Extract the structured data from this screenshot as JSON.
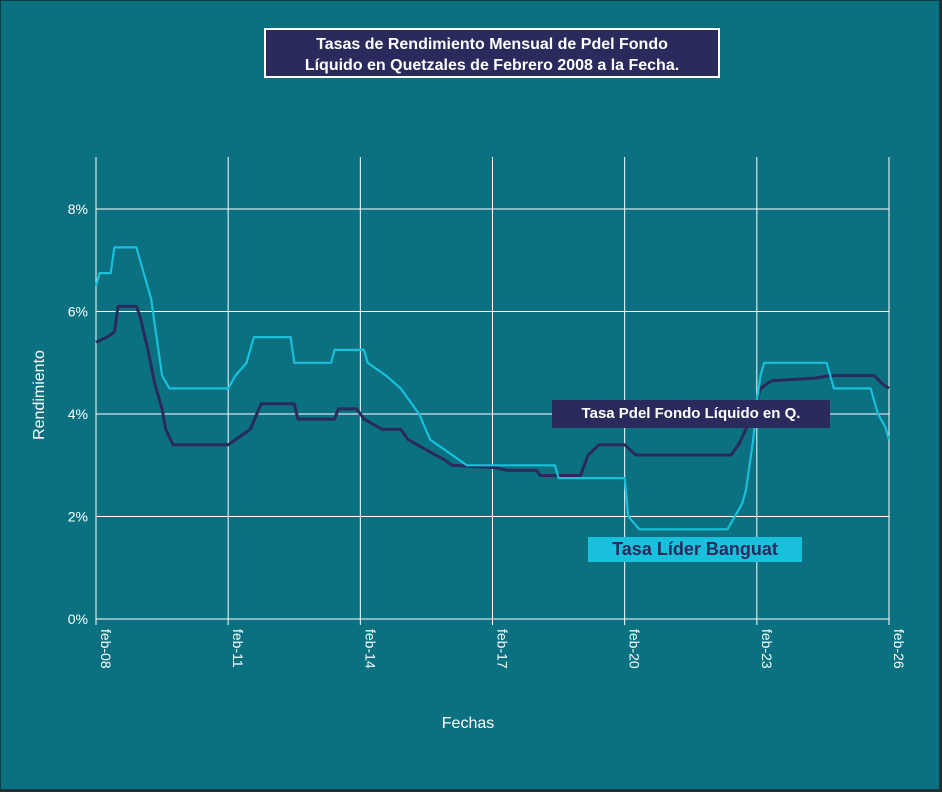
{
  "chart_data": {
    "type": "line",
    "title_lines": [
      "Tasas de Rendimiento Mensual de Pdel Fondo",
      "Líquido en Quetzales de Febrero 2008 a la Fecha."
    ],
    "xlabel": "Fechas",
    "ylabel": "Rendimiento",
    "x_ticks": [
      "feb-08",
      "feb-11",
      "feb-14",
      "feb-17",
      "feb-20",
      "feb-23",
      "feb-26"
    ],
    "y_ticks": [
      "0%",
      "2%",
      "4%",
      "6%",
      "8%"
    ],
    "xlim": [
      "2008-02",
      "2026-02"
    ],
    "ylim": [
      0,
      9
    ],
    "grid": true,
    "series": [
      {
        "name": "Tasa Pdel Fondo Líquido en Q.",
        "color": "#2a2a5c",
        "points": [
          [
            "2008-02",
            5.4
          ],
          [
            "2008-05",
            5.5
          ],
          [
            "2008-07",
            5.6
          ],
          [
            "2008-08",
            6.1
          ],
          [
            "2009-01",
            6.1
          ],
          [
            "2009-02",
            5.9
          ],
          [
            "2009-04",
            5.3
          ],
          [
            "2009-06",
            4.6
          ],
          [
            "2009-08",
            4.1
          ],
          [
            "2009-09",
            3.7
          ],
          [
            "2009-11",
            3.4
          ],
          [
            "2010-06",
            3.4
          ],
          [
            "2011-02",
            3.4
          ],
          [
            "2011-04",
            3.5
          ],
          [
            "2011-08",
            3.7
          ],
          [
            "2011-11",
            4.2
          ],
          [
            "2012-08",
            4.2
          ],
          [
            "2012-09",
            3.9
          ],
          [
            "2013-07",
            3.9
          ],
          [
            "2013-08",
            4.1
          ],
          [
            "2014-01",
            4.1
          ],
          [
            "2014-03",
            3.9
          ],
          [
            "2014-08",
            3.7
          ],
          [
            "2015-01",
            3.7
          ],
          [
            "2015-03",
            3.5
          ],
          [
            "2015-08",
            3.3
          ],
          [
            "2016-01",
            3.1
          ],
          [
            "2016-03",
            3.0
          ],
          [
            "2017-03",
            2.95
          ],
          [
            "2017-06",
            2.9
          ],
          [
            "2018-02",
            2.9
          ],
          [
            "2018-03",
            2.8
          ],
          [
            "2019-02",
            2.8
          ],
          [
            "2019-04",
            3.2
          ],
          [
            "2019-07",
            3.4
          ],
          [
            "2020-02",
            3.4
          ],
          [
            "2020-05",
            3.2
          ],
          [
            "2020-07",
            3.2
          ],
          [
            "2021-01",
            3.2
          ],
          [
            "2021-06",
            3.2
          ],
          [
            "2022-07",
            3.2
          ],
          [
            "2022-09",
            3.4
          ],
          [
            "2023-01",
            4.0
          ],
          [
            "2023-03",
            4.5
          ],
          [
            "2023-06",
            4.65
          ],
          [
            "2024-06",
            4.7
          ],
          [
            "2024-10",
            4.75
          ],
          [
            "2025-10",
            4.75
          ],
          [
            "2025-12",
            4.6
          ],
          [
            "2026-02",
            4.5
          ]
        ]
      },
      {
        "name": "Tasa Líder Banguat",
        "color": "#19c0dc",
        "points": [
          [
            "2008-02",
            6.5
          ],
          [
            "2008-03",
            6.75
          ],
          [
            "2008-06",
            6.75
          ],
          [
            "2008-07",
            7.25
          ],
          [
            "2009-01",
            7.25
          ],
          [
            "2009-04",
            6.5
          ],
          [
            "2009-05",
            6.25
          ],
          [
            "2009-06",
            5.75
          ],
          [
            "2009-08",
            4.75
          ],
          [
            "2009-10",
            4.5
          ],
          [
            "2011-02",
            4.5
          ],
          [
            "2011-04",
            4.75
          ],
          [
            "2011-07",
            5.0
          ],
          [
            "2011-09",
            5.5
          ],
          [
            "2012-07",
            5.5
          ],
          [
            "2012-08",
            5.0
          ],
          [
            "2013-06",
            5.0
          ],
          [
            "2013-07",
            5.25
          ],
          [
            "2014-03",
            5.25
          ],
          [
            "2014-04",
            5.0
          ],
          [
            "2014-09",
            4.75
          ],
          [
            "2015-01",
            4.5
          ],
          [
            "2015-06",
            4.0
          ],
          [
            "2015-09",
            3.5
          ],
          [
            "2016-02",
            3.25
          ],
          [
            "2016-07",
            3.0
          ],
          [
            "2018-07",
            3.0
          ],
          [
            "2018-08",
            2.75
          ],
          [
            "2020-02",
            2.75
          ],
          [
            "2020-03",
            2.0
          ],
          [
            "2020-06",
            1.75
          ],
          [
            "2022-06",
            1.75
          ],
          [
            "2022-08",
            2.0
          ],
          [
            "2022-10",
            2.25
          ],
          [
            "2022-11",
            2.5
          ],
          [
            "2022-12",
            3.0
          ],
          [
            "2023-01",
            3.5
          ],
          [
            "2023-02",
            4.25
          ],
          [
            "2023-03",
            4.75
          ],
          [
            "2023-04",
            5.0
          ],
          [
            "2024-09",
            5.0
          ],
          [
            "2024-11",
            4.5
          ],
          [
            "2025-09",
            4.5
          ],
          [
            "2025-11",
            4.0
          ],
          [
            "2026-01",
            3.75
          ],
          [
            "2026-02",
            3.5
          ]
        ]
      }
    ]
  }
}
